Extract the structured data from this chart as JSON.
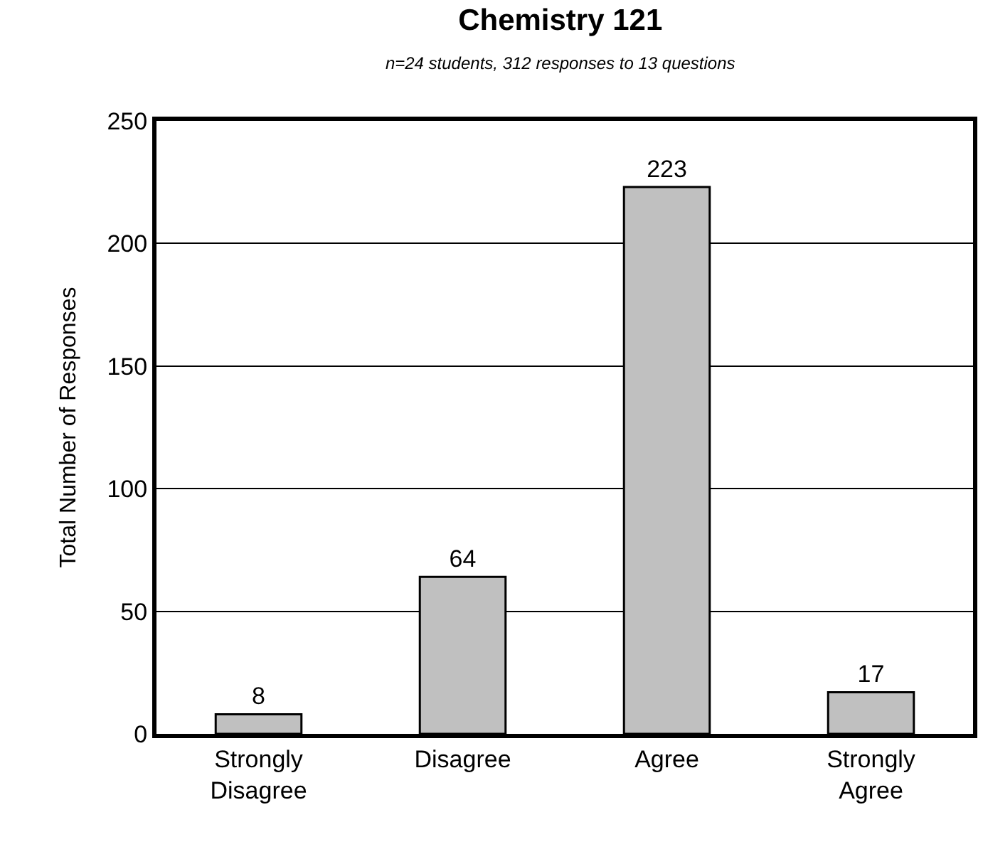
{
  "chart_data": {
    "type": "bar",
    "title": "Chemistry 121",
    "subtitle": "n=24 students, 312 responses to 13 questions",
    "ylabel": "Total Number of Responses",
    "categories": [
      "Strongly Disagree",
      "Disagree",
      "Agree",
      "Strongly Agree"
    ],
    "values": [
      8,
      64,
      223,
      17
    ],
    "color": "#c0c0c0",
    "ylim": [
      0,
      250
    ],
    "yticks": [
      0,
      50,
      100,
      150,
      200,
      250
    ],
    "grid": "y",
    "data_labels": true,
    "legend": false
  }
}
